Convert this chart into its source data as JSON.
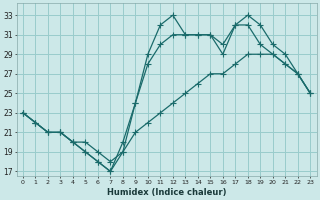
{
  "xlabel": "Humidex (Indice chaleur)",
  "background_color": "#cce8e8",
  "grid_color": "#99cccc",
  "line_color": "#1a6b6b",
  "xlim": [
    -0.5,
    23.5
  ],
  "ylim": [
    16.5,
    34.2
  ],
  "xticks": [
    0,
    1,
    2,
    3,
    4,
    5,
    6,
    7,
    8,
    9,
    10,
    11,
    12,
    13,
    14,
    15,
    16,
    17,
    18,
    19,
    20,
    21,
    22,
    23
  ],
  "yticks": [
    17,
    19,
    21,
    23,
    25,
    27,
    29,
    31,
    33
  ],
  "line1_x": [
    0,
    1,
    2,
    3,
    4,
    5,
    6,
    7,
    8,
    9,
    10,
    11,
    12,
    13,
    14,
    15,
    16,
    17,
    18,
    19,
    20,
    21,
    22,
    23
  ],
  "line1_y": [
    23,
    22,
    21,
    21,
    20,
    19,
    18,
    17,
    19,
    24,
    29,
    32,
    33,
    31,
    31,
    31,
    30,
    32,
    33,
    32,
    30,
    29,
    27,
    25
  ],
  "line2_x": [
    0,
    1,
    2,
    3,
    4,
    5,
    6,
    7,
    8,
    9,
    10,
    11,
    12,
    13,
    14,
    15,
    16,
    17,
    18,
    19,
    20,
    21,
    22,
    23
  ],
  "line2_y": [
    23,
    22,
    21,
    21,
    20,
    19,
    18,
    17,
    20,
    24,
    28,
    30,
    31,
    31,
    31,
    31,
    29,
    32,
    32,
    30,
    29,
    28,
    27,
    25
  ],
  "line3_x": [
    0,
    1,
    2,
    3,
    4,
    5,
    6,
    7,
    8,
    9,
    10,
    11,
    12,
    13,
    14,
    15,
    16,
    17,
    18,
    19,
    20,
    21,
    22,
    23
  ],
  "line3_y": [
    23,
    22,
    21,
    21,
    20,
    20,
    19,
    18,
    19,
    21,
    22,
    23,
    24,
    25,
    26,
    27,
    27,
    28,
    29,
    29,
    29,
    28,
    27,
    25
  ]
}
